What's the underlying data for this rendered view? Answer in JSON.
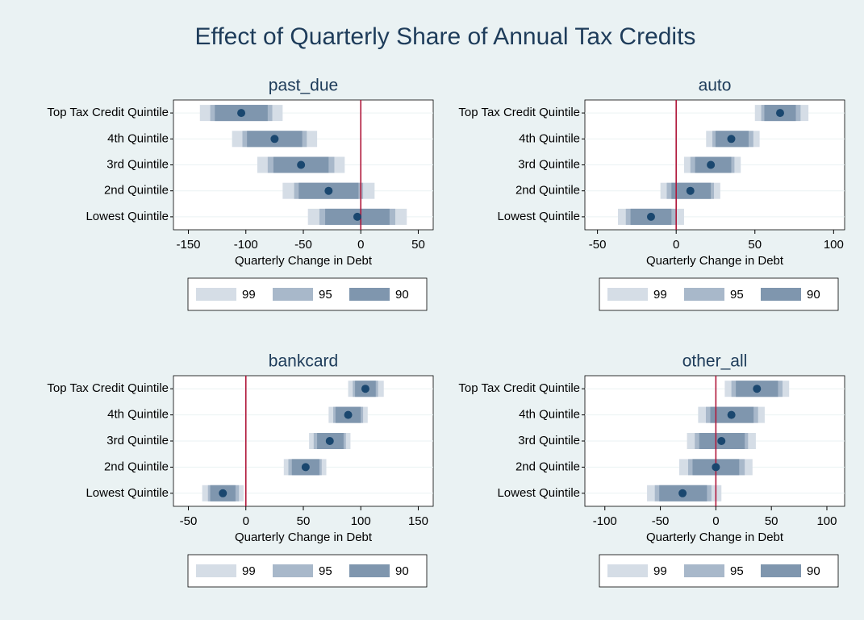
{
  "title": "Effect of Quarterly Share of Annual Tax Credits",
  "chart_data": [
    {
      "type": "coefplot",
      "title": "past_due",
      "categories": [
        "Top Tax Credit Quintile",
        "4th Quintile",
        "3rd Quintile",
        "2nd Quintile",
        "Lowest Quintile"
      ],
      "values": [
        -104,
        -75,
        -52,
        -28,
        -3
      ],
      "series": [
        {
          "name": "99",
          "color": "#d5dde6",
          "low": [
            -140,
            -112,
            -90,
            -68,
            -46
          ],
          "high": [
            -68,
            -38,
            -14,
            12,
            40
          ]
        },
        {
          "name": "95",
          "color": "#a8b8ca",
          "low": [
            -131,
            -103,
            -81,
            -58,
            -36
          ],
          "high": [
            -77,
            -47,
            -23,
            2,
            30
          ]
        },
        {
          "name": "90",
          "color": "#7f96ae",
          "low": [
            -127,
            -99,
            -76,
            -54,
            -31
          ],
          "high": [
            -81,
            -51,
            -28,
            -2,
            25
          ]
        }
      ],
      "marker_color": "#1a476f",
      "xlabel": "Quarterly Change in Debt",
      "xlim": [
        -163,
        63
      ],
      "xticks": [
        -150,
        -100,
        -50,
        0,
        50
      ],
      "refline": 0,
      "refline_color": "#b0173a",
      "grid": true,
      "legend": "bottom"
    },
    {
      "type": "coefplot",
      "title": "auto",
      "categories": [
        "Top Tax Credit Quintile",
        "4th Quintile",
        "3rd Quintile",
        "2nd Quintile",
        "Lowest Quintile"
      ],
      "values": [
        66,
        35,
        22,
        9,
        -16
      ],
      "series": [
        {
          "name": "99",
          "color": "#d5dde6",
          "low": [
            50,
            19,
            5,
            -10,
            -37
          ],
          "high": [
            84,
            53,
            41,
            28,
            5
          ]
        },
        {
          "name": "95",
          "color": "#a8b8ca",
          "low": [
            54,
            23,
            9,
            -6,
            -32
          ],
          "high": [
            79,
            49,
            37,
            24,
            0
          ]
        },
        {
          "name": "90",
          "color": "#7f96ae",
          "low": [
            56,
            25,
            12,
            -3,
            -29
          ],
          "high": [
            76,
            46,
            35,
            22,
            -3
          ]
        }
      ],
      "marker_color": "#1a476f",
      "xlabel": "Quarterly Change in Debt",
      "xlim": [
        -58,
        107
      ],
      "xticks": [
        -50,
        0,
        50,
        100
      ],
      "refline": 0,
      "refline_color": "#b0173a",
      "grid": true,
      "legend": "bottom"
    },
    {
      "type": "coefplot",
      "title": "bankcard",
      "categories": [
        "Top Tax Credit Quintile",
        "4th Quintile",
        "3rd Quintile",
        "2nd Quintile",
        "Lowest Quintile"
      ],
      "values": [
        104,
        89,
        73,
        52,
        -20
      ],
      "series": [
        {
          "name": "99",
          "color": "#d5dde6",
          "low": [
            89,
            72,
            55,
            33,
            -38
          ],
          "high": [
            120,
            106,
            91,
            70,
            -2
          ]
        },
        {
          "name": "95",
          "color": "#a8b8ca",
          "low": [
            93,
            76,
            59,
            37,
            -33
          ],
          "high": [
            115,
            102,
            87,
            66,
            -6
          ]
        },
        {
          "name": "90",
          "color": "#7f96ae",
          "low": [
            95,
            78,
            62,
            40,
            -31
          ],
          "high": [
            113,
            100,
            85,
            64,
            -9
          ]
        }
      ],
      "marker_color": "#1a476f",
      "xlabel": "Quarterly Change in Debt",
      "xlim": [
        -63,
        163
      ],
      "xticks": [
        -50,
        0,
        50,
        100,
        150
      ],
      "refline": 0,
      "refline_color": "#b0173a",
      "grid": true,
      "legend": "bottom"
    },
    {
      "type": "coefplot",
      "title": "other_all",
      "categories": [
        "Top Tax Credit Quintile",
        "4th Quintile",
        "3rd Quintile",
        "2nd Quintile",
        "Lowest Quintile"
      ],
      "values": [
        37,
        14,
        5,
        0,
        -30
      ],
      "series": [
        {
          "name": "99",
          "color": "#d5dde6",
          "low": [
            8,
            -16,
            -26,
            -33,
            -62
          ],
          "high": [
            66,
            44,
            36,
            33,
            5
          ]
        },
        {
          "name": "95",
          "color": "#a8b8ca",
          "low": [
            14,
            -9,
            -19,
            -25,
            -55
          ],
          "high": [
            60,
            38,
            29,
            26,
            -4
          ]
        },
        {
          "name": "90",
          "color": "#7f96ae",
          "low": [
            18,
            -5,
            -15,
            -21,
            -51
          ],
          "high": [
            56,
            34,
            26,
            21,
            -8
          ]
        }
      ],
      "marker_color": "#1a476f",
      "xlabel": "Quarterly Change in Debt",
      "xlim": [
        -118,
        116
      ],
      "xticks": [
        -100,
        -50,
        0,
        50,
        100
      ],
      "refline": 0,
      "refline_color": "#b0173a",
      "grid": true,
      "legend": "bottom"
    }
  ]
}
